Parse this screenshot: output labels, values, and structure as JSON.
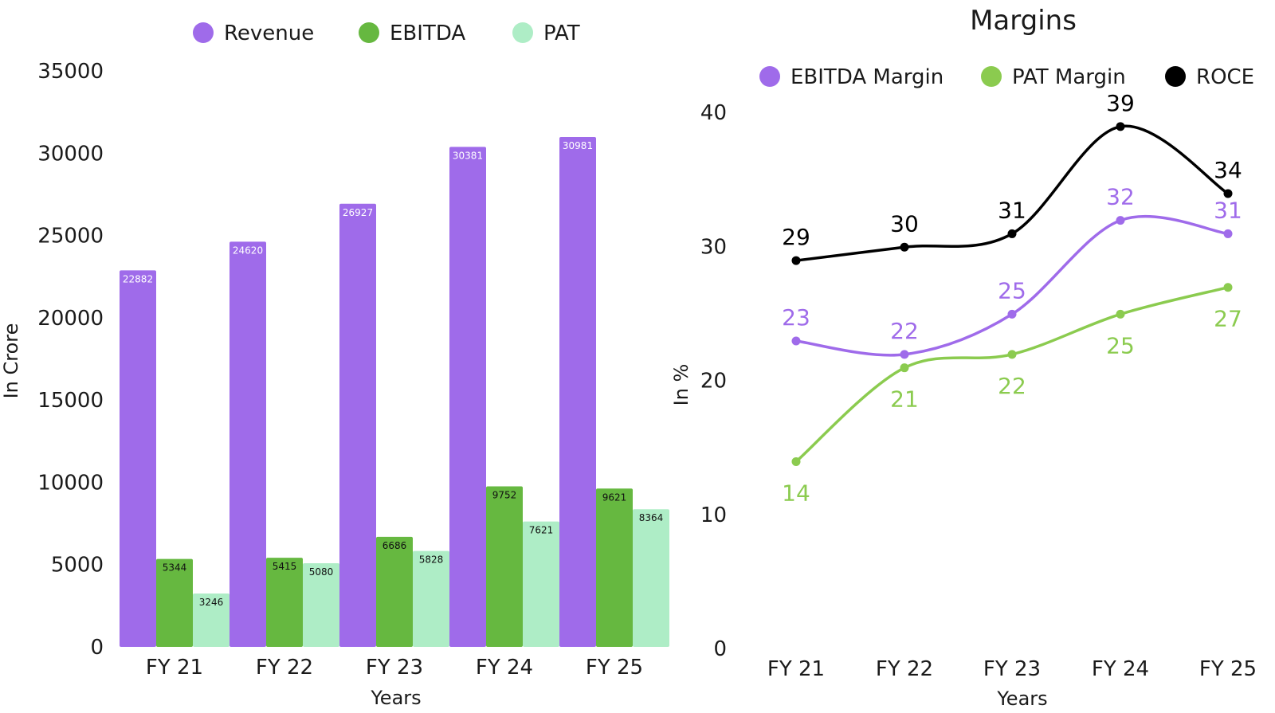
{
  "chart_data": [
    {
      "type": "bar",
      "title": "",
      "categories": [
        "FY 21",
        "FY 22",
        "FY 23",
        "FY 24",
        "FY 25"
      ],
      "series": [
        {
          "name": "Revenue",
          "color": "#9F6BEA",
          "label_color": "#ffffff",
          "values": [
            22882,
            24620,
            26927,
            30381,
            30981
          ]
        },
        {
          "name": "EBITDA",
          "color": "#66B840",
          "label_color": "#111111",
          "values": [
            5344,
            5415,
            6686,
            9752,
            9621
          ]
        },
        {
          "name": "PAT",
          "color": "#AEEDC6",
          "label_color": "#111111",
          "values": [
            3246,
            5080,
            5828,
            7621,
            8364
          ]
        }
      ],
      "xlabel": "Years",
      "ylabel": "In Crore",
      "ylim": [
        0,
        35000
      ],
      "yticks": [
        "0",
        "5000",
        "10000",
        "15000",
        "20000",
        "25000",
        "30000",
        "35000"
      ],
      "legend": "top-center",
      "grid": false
    },
    {
      "type": "line",
      "title": "Margins",
      "categories": [
        "FY 21",
        "FY 22",
        "FY 23",
        "FY 24",
        "FY 25"
      ],
      "series": [
        {
          "name": "EBITDA Margin",
          "color": "#9F6BEA",
          "values": [
            23,
            22,
            25,
            32,
            31
          ],
          "labels": [
            "23",
            "22",
            "25",
            "32",
            "31"
          ]
        },
        {
          "name": "PAT Margin",
          "color": "#8BCB4F",
          "values": [
            14,
            21,
            22,
            25,
            27
          ],
          "labels": [
            "14",
            "21",
            "22",
            "25",
            "27"
          ]
        },
        {
          "name": "ROCE",
          "color": "#000000",
          "values": [
            29,
            30,
            31,
            39,
            34
          ],
          "labels": [
            "29",
            "30",
            "31",
            "39",
            "34"
          ]
        }
      ],
      "xlabel": "Years",
      "ylabel": "In %",
      "ylim": [
        0,
        40
      ],
      "yticks": [
        "0",
        "10",
        "20",
        "30",
        "40"
      ],
      "legend": "top",
      "grid": false
    }
  ]
}
